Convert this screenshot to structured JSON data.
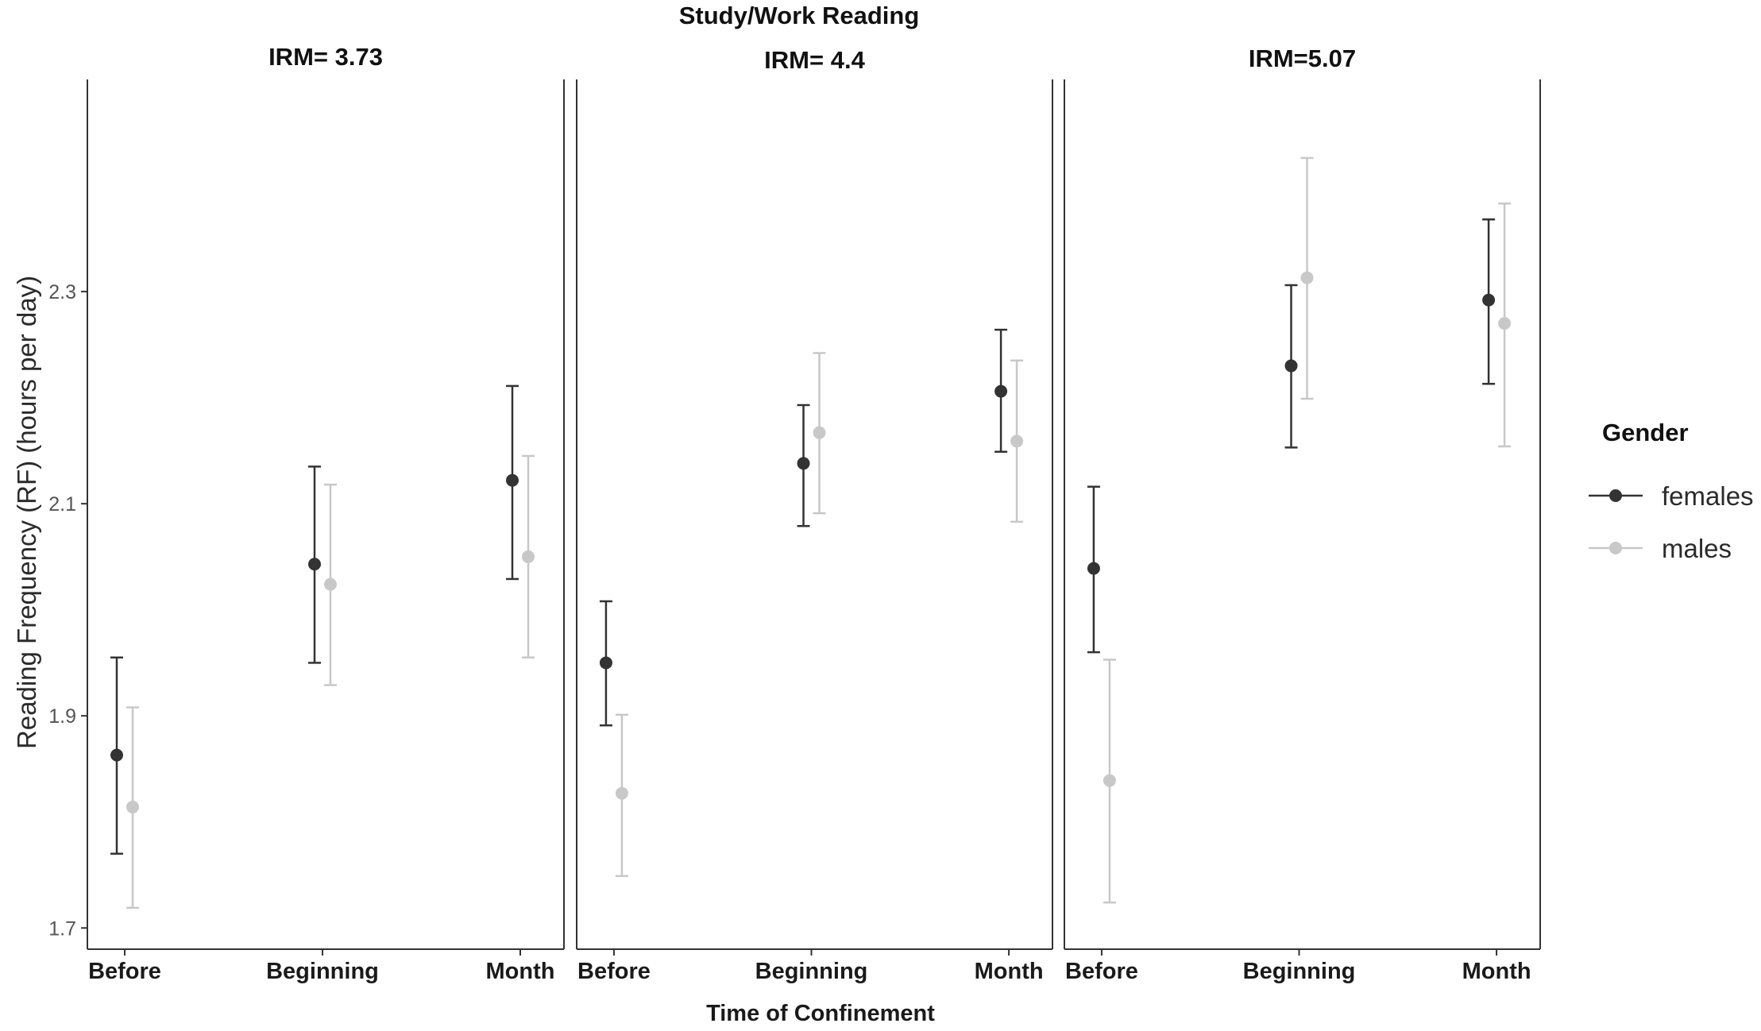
{
  "chart_data": {
    "type": "scatter",
    "title": "Study/Work Reading",
    "xlabel": "Time of Confinement",
    "ylabel": "Reading Frequency (RF) (hours per day)",
    "ylim": [
      1.68,
      2.5
    ],
    "yticks": [
      1.7,
      1.9,
      2.1,
      2.3
    ],
    "ytick_labels": [
      "1.7",
      "1.9",
      "2.1",
      "2.3"
    ],
    "categories": [
      "Before",
      "Beginning",
      "Month"
    ],
    "grid": false,
    "legend": {
      "title": "Gender",
      "position": "right",
      "entries": [
        {
          "name": "females",
          "color": "#333333"
        },
        {
          "name": "males",
          "color": "#c8c8c8"
        }
      ]
    },
    "panels": [
      {
        "title": "IRM= 3.73",
        "series": [
          {
            "name": "females",
            "values": [
              1.863,
              2.043,
              2.122
            ],
            "lower": [
              1.77,
              1.95,
              2.029
            ],
            "upper": [
              1.955,
              2.135,
              2.211
            ]
          },
          {
            "name": "males",
            "values": [
              1.814,
              2.024,
              2.05
            ],
            "lower": [
              1.719,
              1.929,
              1.955
            ],
            "upper": [
              1.908,
              2.118,
              2.145
            ]
          }
        ]
      },
      {
        "title": "IRM= 4.4",
        "series": [
          {
            "name": "females",
            "values": [
              1.95,
              2.138,
              2.206
            ],
            "lower": [
              1.891,
              2.079,
              2.149
            ],
            "upper": [
              2.008,
              2.193,
              2.264
            ]
          },
          {
            "name": "males",
            "values": [
              1.827,
              2.167,
              2.159
            ],
            "lower": [
              1.749,
              2.091,
              2.083
            ],
            "upper": [
              1.901,
              2.242,
              2.235
            ]
          }
        ]
      },
      {
        "title": "IRM=5.07",
        "series": [
          {
            "name": "females",
            "values": [
              2.039,
              2.23,
              2.292
            ],
            "lower": [
              1.96,
              2.153,
              2.213
            ],
            "upper": [
              2.116,
              2.306,
              2.368
            ]
          },
          {
            "name": "males",
            "values": [
              1.839,
              2.313,
              2.27
            ],
            "lower": [
              1.724,
              2.199,
              2.154
            ],
            "upper": [
              1.953,
              2.426,
              2.383
            ]
          }
        ]
      }
    ]
  }
}
